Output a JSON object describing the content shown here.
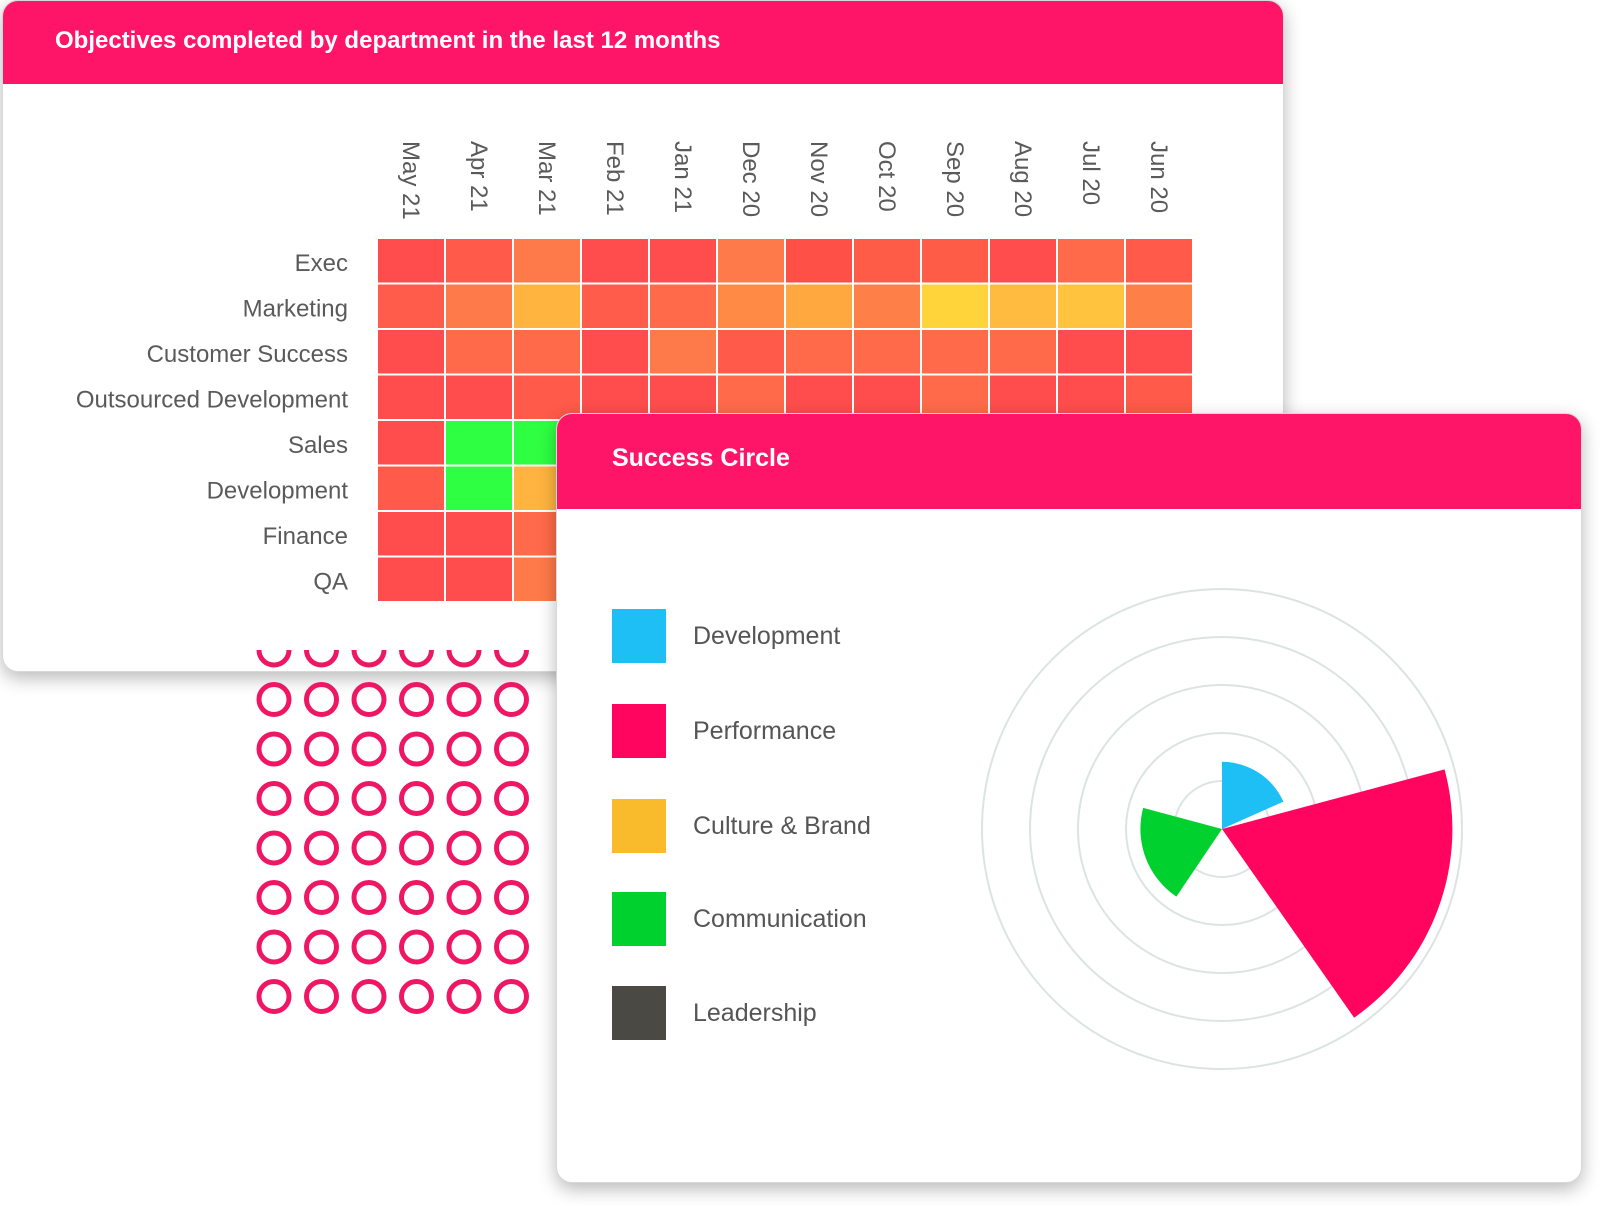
{
  "heatmap": {
    "title": "Objectives completed by department in the last 12 months",
    "chart_data": {
      "type": "heatmap",
      "title": "Objectives completed by department in the last 12 months",
      "columns": [
        "May 21",
        "Apr 21",
        "Mar 21",
        "Feb 21",
        "Jan 21",
        "Dec 20",
        "Nov 20",
        "Oct 20",
        "Sep 20",
        "Aug 20",
        "Jul 20",
        "Jun 20"
      ],
      "rows": [
        "Exec",
        "Marketing",
        "Customer Success",
        "Outsourced Development",
        "Sales",
        "Development",
        "Finance",
        "QA"
      ],
      "cell_colors": [
        [
          "#ff4d4d",
          "#ff5a4a",
          "#ff7a4a",
          "#ff4d4d",
          "#ff4d4d",
          "#ff7a4a",
          "#ff5047",
          "#ff5c47",
          "#ff5c47",
          "#ff4d4d",
          "#ff6a4a",
          "#ff5a4a"
        ],
        [
          "#ff5c4c",
          "#ff7a4a",
          "#ffb43f",
          "#ff5c4c",
          "#ff6a4a",
          "#ff8a45",
          "#ffa840",
          "#ff7f48",
          "#ffd33a",
          "#ffbb40",
          "#ffc33d",
          "#ff7f48"
        ],
        [
          "#ff4d4d",
          "#ff6a4a",
          "#ff6a4a",
          "#ff4d4d",
          "#ff7a4a",
          "#ff5a4a",
          "#ff6a4a",
          "#ff6a4a",
          "#ff6a4a",
          "#ff6a4a",
          "#ff4d4d",
          "#ff4d4d"
        ],
        [
          "#ff4d4d",
          "#ff4d4d",
          "#ff5a4a",
          "#ff4d4d",
          "#ff4d4d",
          "#ff6a4a",
          "#ff4d4d",
          "#ff4d4d",
          "#ff6a4a",
          "#ff4d4d",
          "#ff4d4d",
          "#ff5a4a"
        ],
        [
          "#ff4d4d",
          "#2eff42",
          "#2eff42",
          "#ff5a4a",
          "#ff5a4a",
          "#ff5a4a",
          "#ff5a4a",
          "#ff5a4a",
          "#ff5a4a",
          "#ff5a4a",
          "#ff5a4a",
          "#ff5a4a"
        ],
        [
          "#ff5a4a",
          "#2eff42",
          "#ffb43f",
          "#ff5a4a",
          "#ff5a4a",
          "#ff5a4a",
          "#ff5a4a",
          "#ff5a4a",
          "#ff5a4a",
          "#ff5a4a",
          "#ff5a4a",
          "#ff5a4a"
        ],
        [
          "#ff4d4d",
          "#ff4d4d",
          "#ff6a4a",
          "#ff4d4d",
          "#ff4d4d",
          "#ff4d4d",
          "#ff4d4d",
          "#ff4d4d",
          "#ff4d4d",
          "#ff4d4d",
          "#ff4d4d",
          "#ff4d4d"
        ],
        [
          "#ff4d4d",
          "#ff4d4d",
          "#ff7a4a",
          "#ff4d4d",
          "#ff4d4d",
          "#ff4d4d",
          "#ff4d4d",
          "#ff4d4d",
          "#ff4d4d",
          "#ff4d4d",
          "#ff4d4d",
          "#ff4d4d"
        ]
      ],
      "legend": "none"
    }
  },
  "success_circle": {
    "title": "Success Circle",
    "chart_data": {
      "type": "polar-area",
      "title": "Success Circle",
      "rings": 5,
      "series": [
        {
          "name": "Development",
          "color": "#1ebff4",
          "radius": 1.4,
          "start_deg": 0,
          "end_deg": 66
        },
        {
          "name": "Performance",
          "color": "#ff0560",
          "radius": 4.8,
          "start_deg": 75,
          "end_deg": 145
        },
        {
          "name": "Culture & Brand",
          "color": "#f9bb2c",
          "radius": 0,
          "start_deg": 0,
          "end_deg": 0
        },
        {
          "name": "Communication",
          "color": "#00d12e",
          "radius": 1.7,
          "start_deg": 214,
          "end_deg": 285
        },
        {
          "name": "Leadership",
          "color": "#4a4943",
          "radius": 0,
          "start_deg": 0,
          "end_deg": 0
        }
      ],
      "legend": "left"
    }
  },
  "decoration": {
    "dot_color": "#ef1663"
  }
}
